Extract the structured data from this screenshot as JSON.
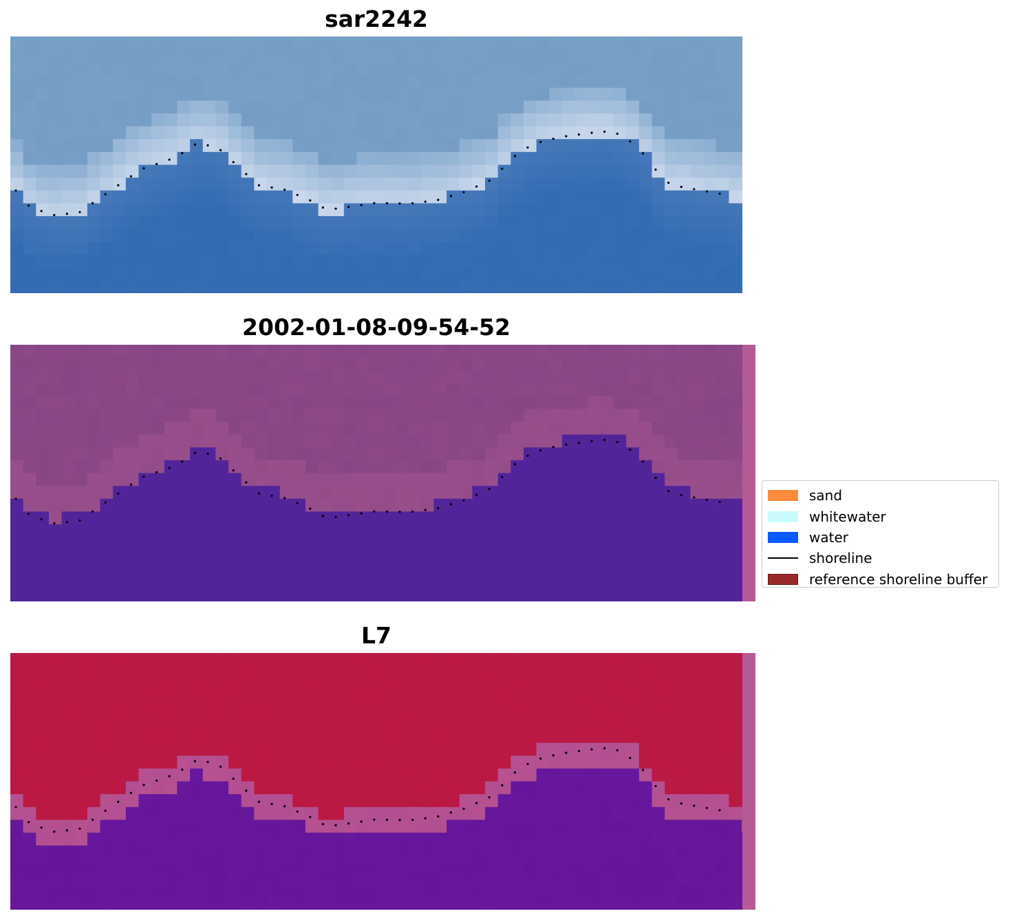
{
  "panels": [
    {
      "title": "sar2242",
      "kind": "rgb"
    },
    {
      "title": "2002-01-08-09-54-52",
      "kind": "classification"
    },
    {
      "title": "L7",
      "kind": "index"
    }
  ],
  "legend": {
    "items": [
      {
        "label": "sand",
        "type": "patch",
        "color": "#ff8c3c"
      },
      {
        "label": "whitewater",
        "type": "patch",
        "color": "#c8fcfc"
      },
      {
        "label": "water",
        "type": "patch",
        "color": "#0a5aff"
      },
      {
        "label": "shoreline",
        "type": "line",
        "color": "#000000"
      },
      {
        "label": "reference shoreline buffer",
        "type": "patch",
        "color": "#9a2a2a",
        "edge": "#6e1414"
      }
    ]
  },
  "colors": {
    "water_dark": "#3a74b8",
    "class_water": "#52249a",
    "class_land": "#8a4786",
    "index_land": "#c01440",
    "index_water": "#6a1a9e",
    "buffer_strip": "#b45a94"
  }
}
